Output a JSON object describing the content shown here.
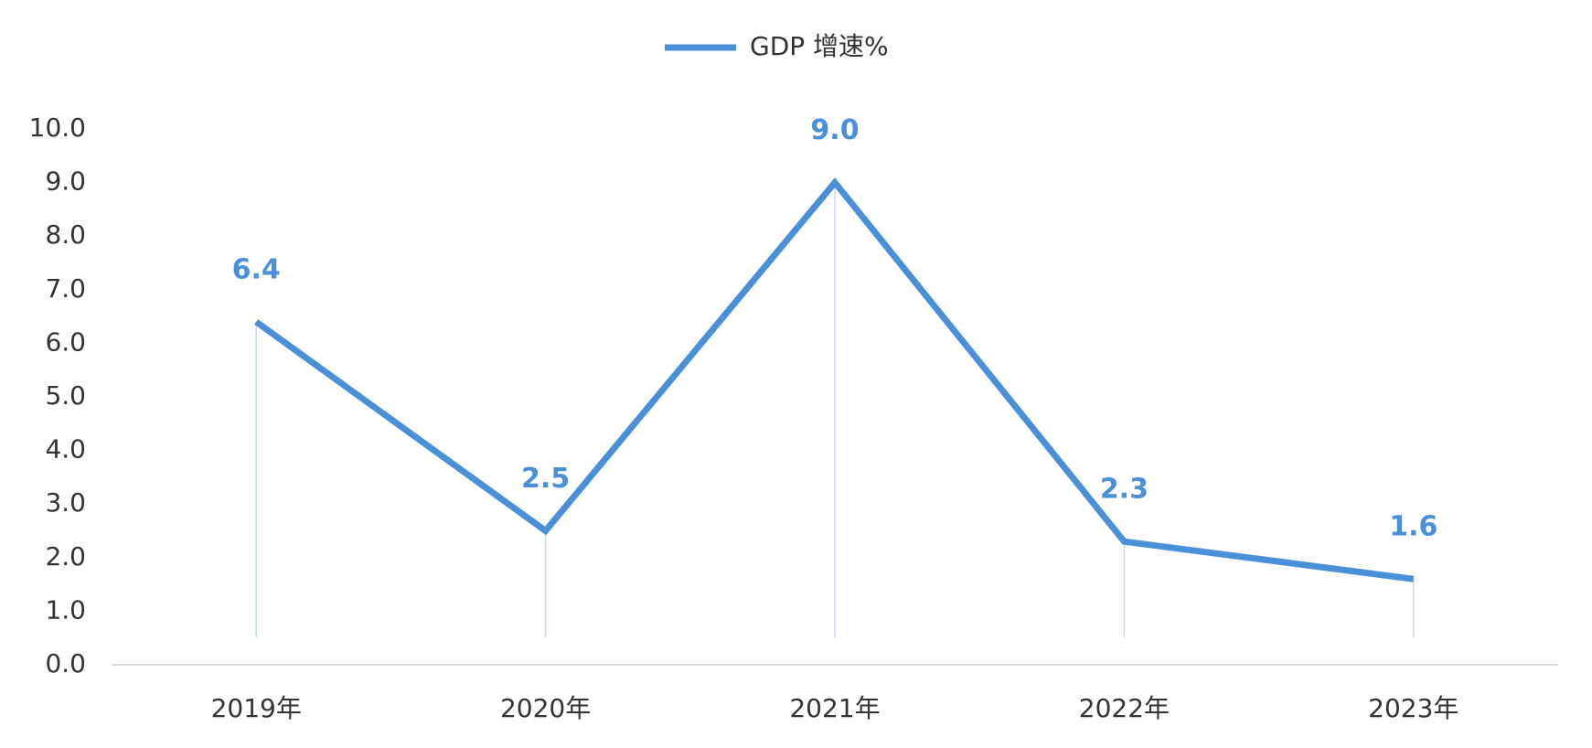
{
  "chart_data": {
    "type": "line",
    "categories": [
      "2019年",
      "2020年",
      "2021年",
      "2022年",
      "2023年"
    ],
    "series": [
      {
        "name": "GDP 增速%",
        "color": "#4a90d9",
        "values": [
          6.4,
          2.5,
          9.0,
          2.3,
          1.6
        ],
        "value_labels": [
          "6.4",
          "2.5",
          "9.0",
          "2.3",
          "1.6"
        ]
      }
    ],
    "ylim": [
      0,
      10
    ],
    "yticks": [
      {
        "value": 0,
        "label": "0.0"
      },
      {
        "value": 1,
        "label": "1.0"
      },
      {
        "value": 2,
        "label": "2.0"
      },
      {
        "value": 3,
        "label": "3.0"
      },
      {
        "value": 4,
        "label": "4.0"
      },
      {
        "value": 5,
        "label": "5.0"
      },
      {
        "value": 6,
        "label": "6.0"
      },
      {
        "value": 7,
        "label": "7.0"
      },
      {
        "value": 8,
        "label": "8.0"
      },
      {
        "value": 9,
        "label": "9.0"
      },
      {
        "value": 10,
        "label": "10.0"
      }
    ],
    "legend": "top"
  }
}
